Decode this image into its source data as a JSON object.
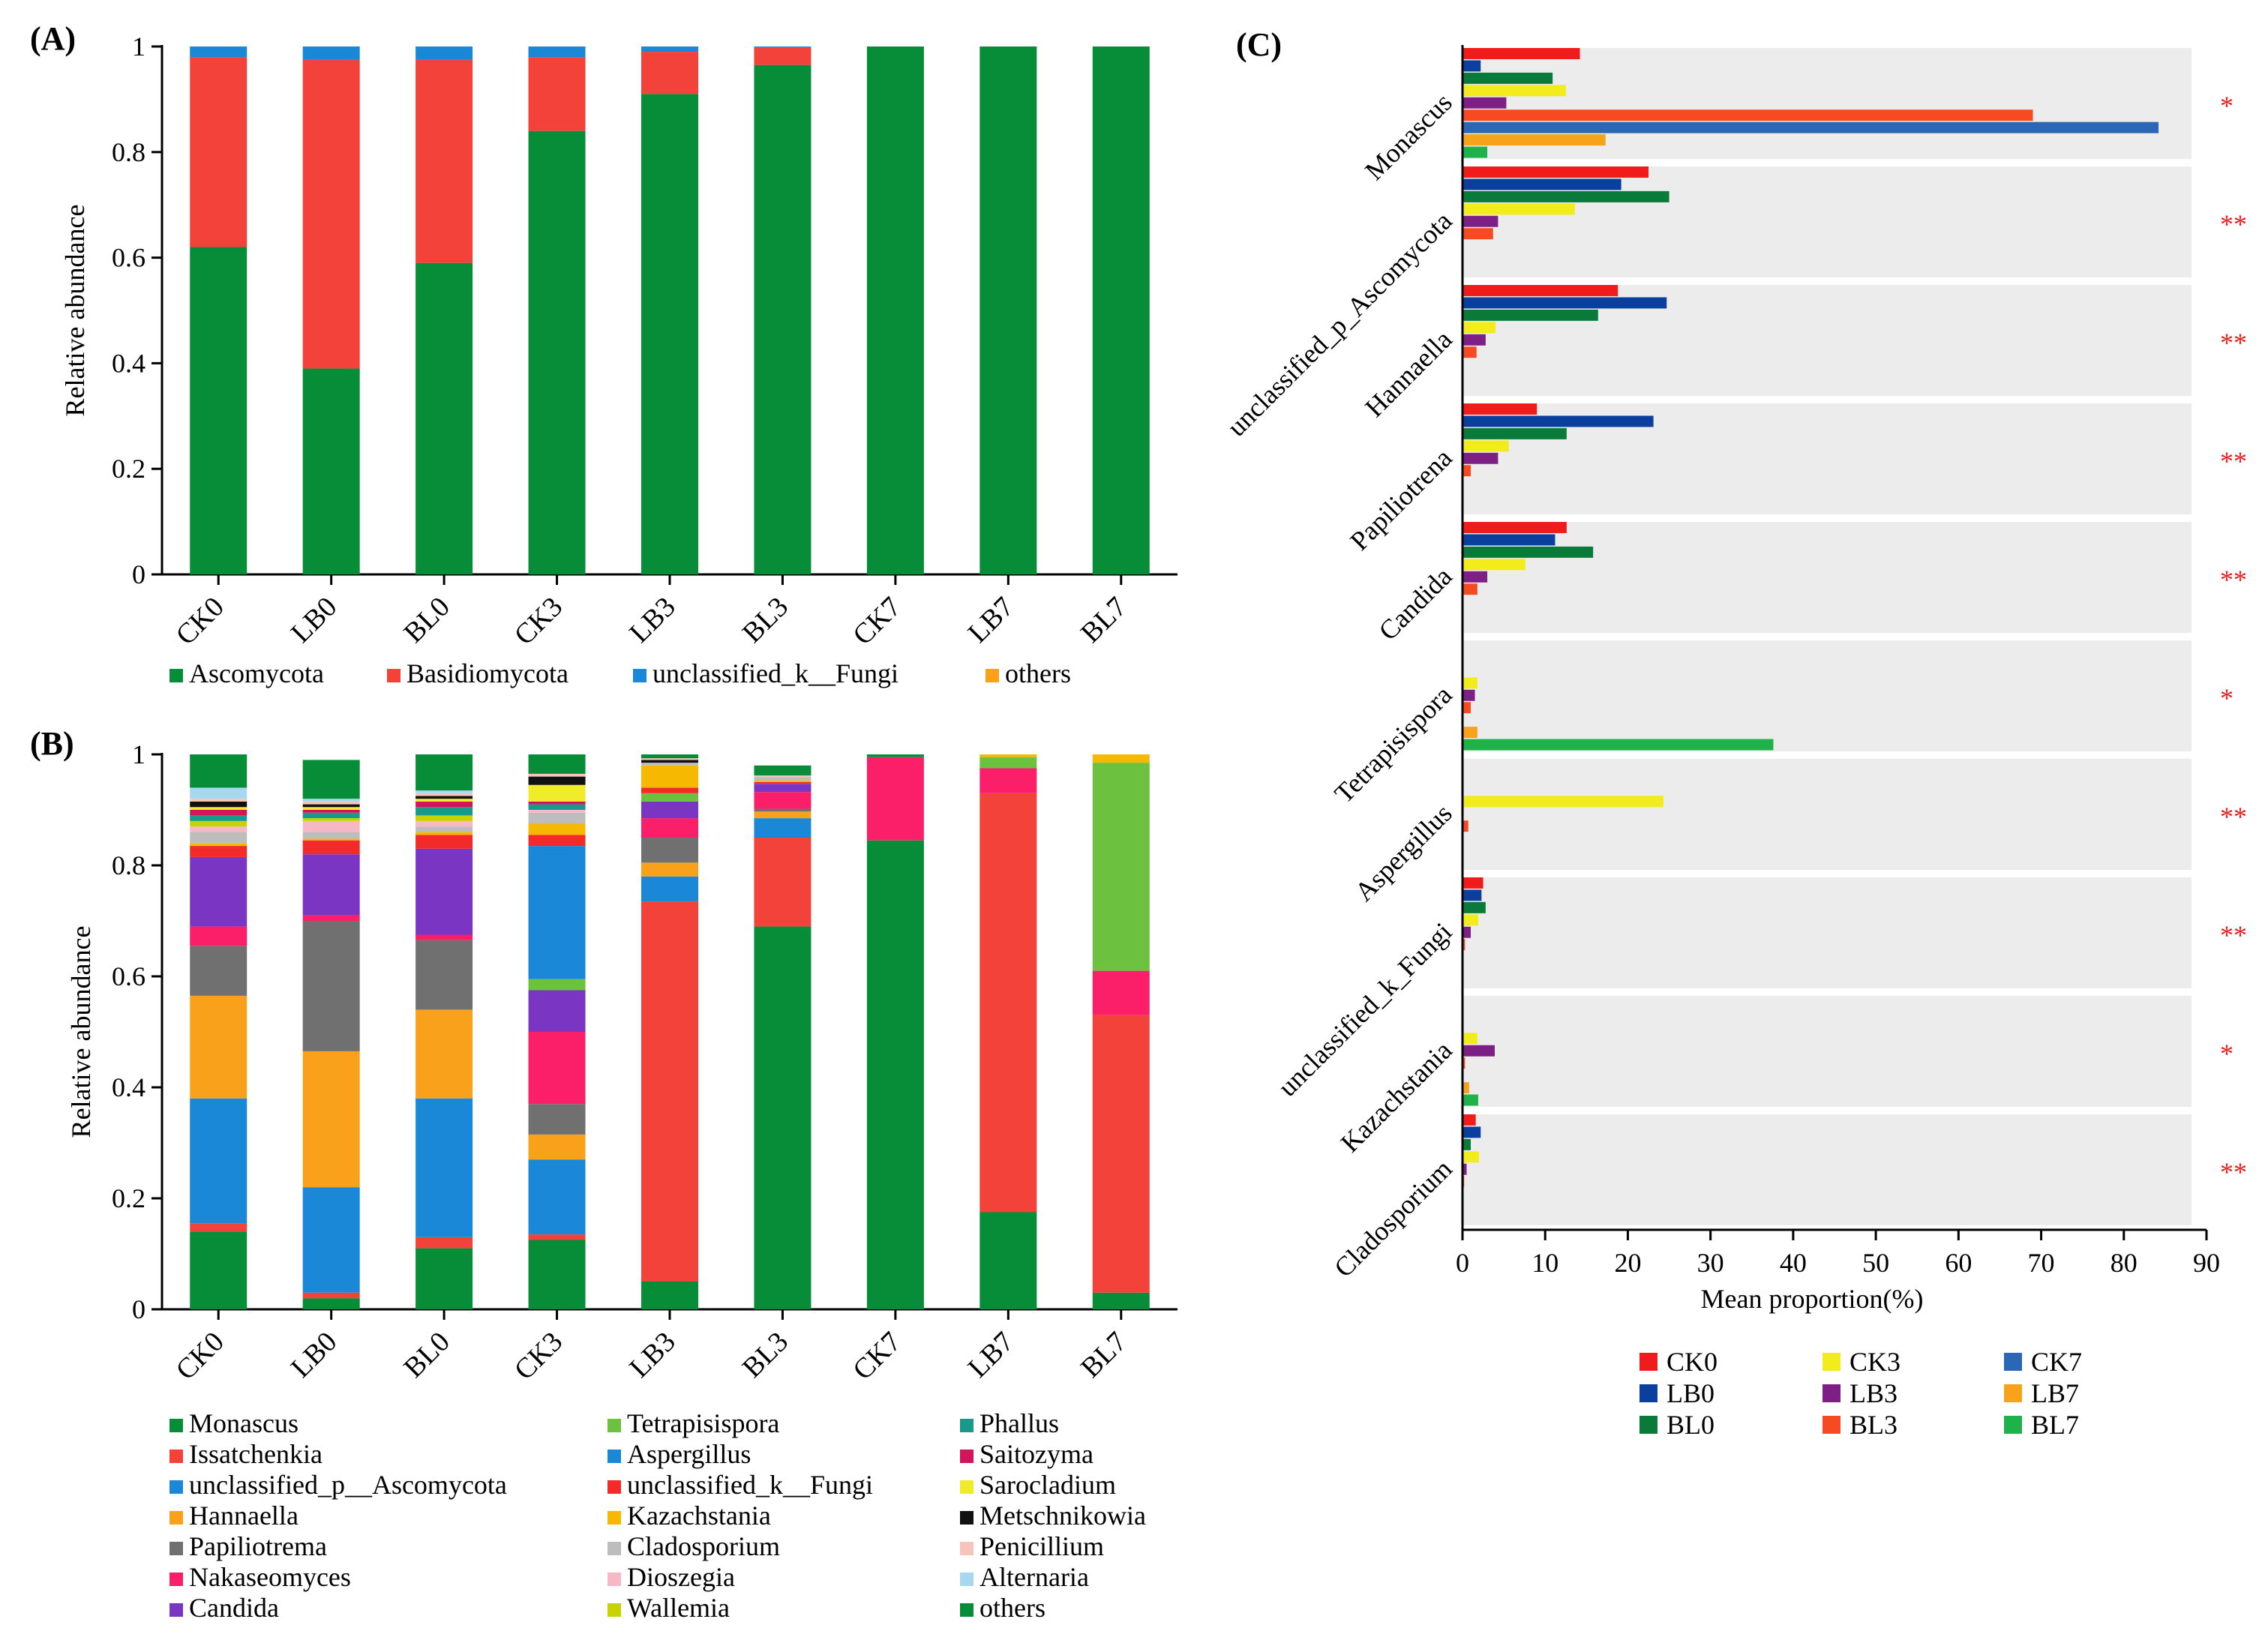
{
  "chart_data": [
    {
      "panel": "(A)",
      "type": "bar",
      "stacked": true,
      "ylabel": "Relative abundance",
      "ylim": [
        0,
        1
      ],
      "yticks": [
        "0",
        "0.2",
        "0.4",
        "0.6",
        "0.8",
        "1"
      ],
      "categories": [
        "CK0",
        "LB0",
        "BL0",
        "CK3",
        "LB3",
        "BL3",
        "CK7",
        "LB7",
        "BL7"
      ],
      "series": [
        {
          "name": "Ascomycota",
          "color": "#078c38",
          "values": [
            0.62,
            0.39,
            0.59,
            0.84,
            0.91,
            0.965,
            1.0,
            1.0,
            1.0
          ]
        },
        {
          "name": "Basidiomycota",
          "color": "#f3423a",
          "values": [
            0.36,
            0.585,
            0.385,
            0.14,
            0.08,
            0.033,
            0,
            0,
            0
          ]
        },
        {
          "name": "unclassified_k__Fungi",
          "color": "#1a88d6",
          "values": [
            0.02,
            0.025,
            0.025,
            0.02,
            0.01,
            0.002,
            0,
            0,
            0
          ]
        },
        {
          "name": "others",
          "color": "#f9a11b",
          "values": [
            0,
            0,
            0,
            0,
            0,
            0,
            0,
            0,
            0
          ]
        }
      ]
    },
    {
      "panel": "(B)",
      "type": "bar",
      "stacked": true,
      "ylabel": "Relative abundance",
      "ylim": [
        0,
        1
      ],
      "yticks": [
        "0",
        "0.2",
        "0.4",
        "0.6",
        "0.8",
        "1"
      ],
      "categories": [
        "CK0",
        "LB0",
        "BL0",
        "CK3",
        "LB3",
        "BL3",
        "CK7",
        "LB7",
        "BL7"
      ],
      "series": [
        {
          "name": "Monascus",
          "color": "#078c38",
          "values": [
            0.14,
            0.02,
            0.11,
            0.125,
            0.05,
            0.69,
            0.845,
            0.175,
            0.03
          ]
        },
        {
          "name": "Issatchenkia",
          "color": "#f3423a",
          "values": [
            0.015,
            0.01,
            0.02,
            0.01,
            0.685,
            0.16,
            0,
            0.755,
            0.5
          ]
        },
        {
          "name": "unclassified_p__Ascomycota",
          "color": "#1a88d6",
          "values": [
            0.225,
            0.19,
            0.25,
            0.135,
            0.045,
            0.035,
            0,
            0,
            0
          ]
        },
        {
          "name": "Hannaella",
          "color": "#f9a11b",
          "values": [
            0.185,
            0.245,
            0.16,
            0.045,
            0.025,
            0.012,
            0,
            0,
            0
          ]
        },
        {
          "name": "Papiliotrema",
          "color": "#707070",
          "values": [
            0.09,
            0.235,
            0.125,
            0.055,
            0.045,
            0.005,
            0,
            0,
            0
          ]
        },
        {
          "name": "Nakaseomyces",
          "color": "#fb1f6a",
          "values": [
            0.035,
            0.01,
            0.01,
            0.13,
            0.035,
            0.03,
            0.15,
            0.045,
            0.08
          ]
        },
        {
          "name": "Candida",
          "color": "#7a36c2",
          "values": [
            0.125,
            0.11,
            0.155,
            0.075,
            0.03,
            0.015,
            0,
            0,
            0
          ]
        },
        {
          "name": "Tetrapisispora",
          "color": "#6cc13f",
          "values": [
            0,
            0,
            0,
            0.02,
            0.015,
            0,
            0,
            0.02,
            0.375
          ]
        },
        {
          "name": "Aspergillus",
          "color": "#1a88d6",
          "values": [
            0,
            0,
            0,
            0.24,
            0,
            0,
            0,
            0,
            0
          ]
        },
        {
          "name": "unclassified_k__Fungi",
          "color": "#f32a2a",
          "values": [
            0.02,
            0.025,
            0.025,
            0.02,
            0.01,
            0.003,
            0,
            0,
            0
          ]
        },
        {
          "name": "Kazachstania",
          "color": "#f6b800",
          "values": [
            0.005,
            0.003,
            0.005,
            0.02,
            0.04,
            0.003,
            0,
            0.005,
            0.015
          ]
        },
        {
          "name": "Cladosporium",
          "color": "#bdbdbd",
          "values": [
            0.02,
            0.012,
            0.01,
            0.02,
            0.005,
            0.006,
            0,
            0,
            0
          ]
        },
        {
          "name": "Dioszegia",
          "color": "#f7b8c6",
          "values": [
            0.01,
            0.02,
            0.01,
            0.005,
            0,
            0,
            0,
            0,
            0
          ]
        },
        {
          "name": "Wallemia",
          "color": "#c8d200",
          "values": [
            0.01,
            0.005,
            0.01,
            0,
            0,
            0,
            0,
            0,
            0
          ]
        },
        {
          "name": "Phallus",
          "color": "#179a8c",
          "values": [
            0.01,
            0.01,
            0.015,
            0.01,
            0,
            0,
            0,
            0,
            0
          ]
        },
        {
          "name": "Saitozyma",
          "color": "#d4145a",
          "values": [
            0.01,
            0.005,
            0.01,
            0.005,
            0,
            0,
            0,
            0,
            0
          ]
        },
        {
          "name": "Sarocladium",
          "color": "#f1ec2b",
          "values": [
            0.005,
            0.005,
            0.005,
            0.03,
            0,
            0,
            0,
            0,
            0
          ]
        },
        {
          "name": "Metschnikowia",
          "color": "#111111",
          "values": [
            0.01,
            0.005,
            0.005,
            0.015,
            0.005,
            0,
            0,
            0,
            0
          ]
        },
        {
          "name": "Penicillium",
          "color": "#f7c4bc",
          "values": [
            0.005,
            0.005,
            0.005,
            0.005,
            0.003,
            0.003,
            0,
            0,
            0
          ]
        },
        {
          "name": "Alternaria",
          "color": "#a7d8f0",
          "values": [
            0.02,
            0.005,
            0.005,
            0,
            0,
            0,
            0,
            0,
            0
          ]
        },
        {
          "name": "others",
          "color": "#078c38",
          "values": [
            0.07,
            0.07,
            0.065,
            0.04,
            0.022,
            0.018,
            0.005,
            0,
            0
          ]
        }
      ]
    },
    {
      "panel": "(C)",
      "type": "bar",
      "orientation": "horizontal",
      "xlabel": "Mean proportion(%)",
      "xlim": [
        0,
        90
      ],
      "xticks": [
        "0",
        "10",
        "20",
        "30",
        "40",
        "50",
        "60",
        "70",
        "80",
        "90"
      ],
      "categories": [
        "Monascus",
        "unclassified_p_Ascomycota",
        "Hannaella",
        "Papiliotrena",
        "Candida",
        "Tetrapisispora",
        "Aspergillus",
        "unclassified_k_Fungi",
        "Kazachstania",
        "Cladosporium"
      ],
      "significance": [
        "*",
        "**",
        "**",
        "**",
        "**",
        "*",
        "**",
        "**",
        "*",
        "**"
      ],
      "series": [
        {
          "name": "CK0",
          "color": "#f01b1b",
          "values": [
            14.2,
            22.5,
            18.8,
            9.0,
            12.6,
            0,
            0,
            2.5,
            0,
            1.6
          ]
        },
        {
          "name": "LB0",
          "color": "#0b3f9e",
          "values": [
            2.2,
            19.2,
            24.7,
            23.1,
            11.2,
            0,
            0,
            2.3,
            0,
            2.2
          ]
        },
        {
          "name": "BL0",
          "color": "#0a7a3a",
          "values": [
            10.9,
            25.0,
            16.4,
            12.6,
            15.8,
            0,
            0,
            2.8,
            0,
            1.0
          ]
        },
        {
          "name": "CK3",
          "color": "#f2ec1c",
          "values": [
            12.5,
            13.6,
            4.0,
            5.6,
            7.6,
            1.8,
            24.3,
            1.9,
            1.8,
            2.0
          ]
        },
        {
          "name": "LB3",
          "color": "#7d1f84",
          "values": [
            5.3,
            4.3,
            2.8,
            4.3,
            3.0,
            1.5,
            0,
            1.0,
            3.9,
            0.5
          ]
        },
        {
          "name": "BL3",
          "color": "#f64a22",
          "values": [
            69.0,
            3.7,
            1.7,
            1.0,
            1.8,
            1.0,
            0.7,
            0.3,
            0.3,
            0.2
          ]
        },
        {
          "name": "CK7",
          "color": "#2c67b6",
          "values": [
            84.2,
            0,
            0,
            0,
            0,
            0,
            0,
            0,
            0,
            0
          ]
        },
        {
          "name": "LB7",
          "color": "#f7a21b",
          "values": [
            17.3,
            0,
            0,
            0,
            0,
            1.8,
            0,
            0,
            0.8,
            0
          ]
        },
        {
          "name": "BL7",
          "color": "#20b24a",
          "values": [
            3.0,
            0,
            0,
            0,
            0,
            37.6,
            0,
            0,
            1.9,
            0
          ]
        }
      ]
    }
  ]
}
